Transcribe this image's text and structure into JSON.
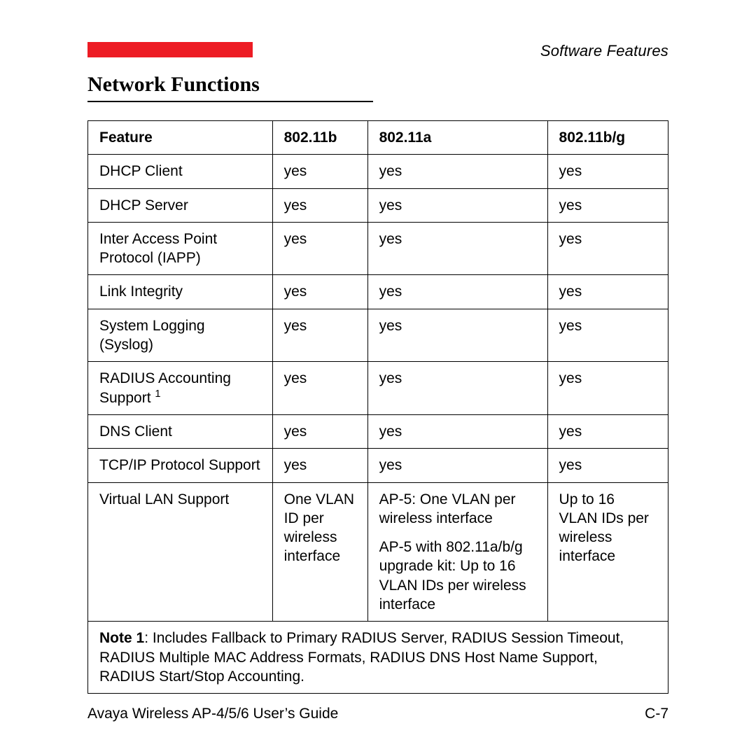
{
  "header": {
    "redbar_color": "#ed1c24",
    "section_label": "Software Features",
    "title": "Network Functions"
  },
  "table": {
    "columns": [
      "Feature",
      "802.11b",
      "802.11a",
      "802.11b/g"
    ],
    "rows": [
      {
        "feature": "DHCP Client",
        "b": "yes",
        "a": "yes",
        "bg": "yes"
      },
      {
        "feature": "DHCP Server",
        "b": "yes",
        "a": "yes",
        "bg": "yes"
      },
      {
        "feature": "Inter Access Point Protocol (IAPP)",
        "b": "yes",
        "a": "yes",
        "bg": "yes"
      },
      {
        "feature": "Link Integrity",
        "b": "yes",
        "a": "yes",
        "bg": "yes"
      },
      {
        "feature": "System Logging (Syslog)",
        "b": "yes",
        "a": "yes",
        "bg": "yes"
      },
      {
        "feature": "RADIUS Accounting Support",
        "feature_sup": "1",
        "b": "yes",
        "a": "yes",
        "bg": "yes"
      },
      {
        "feature": "DNS Client",
        "b": "yes",
        "a": "yes",
        "bg": "yes"
      },
      {
        "feature": "TCP/IP Protocol Support",
        "b": "yes",
        "a": "yes",
        "bg": "yes"
      },
      {
        "feature": "Virtual LAN Support",
        "b": "One VLAN ID per wireless interface",
        "a_p1": "AP-5: One VLAN per wireless interface",
        "a_p2": "AP-5 with 802.11a/b/g upgrade kit: Up to 16 VLAN IDs per wireless interface",
        "bg": "Up to 16 VLAN IDs per wireless interface"
      }
    ],
    "note": {
      "label": "Note 1",
      "text": ": Includes Fallback to Primary RADIUS Server, RADIUS Session Timeout, RADIUS Multiple MAC Address Formats, RADIUS DNS Host Name Support, RADIUS Start/Stop Accounting."
    }
  },
  "footer": {
    "left": "Avaya Wireless AP-4/5/6 User’s Guide",
    "right": "C-7"
  }
}
